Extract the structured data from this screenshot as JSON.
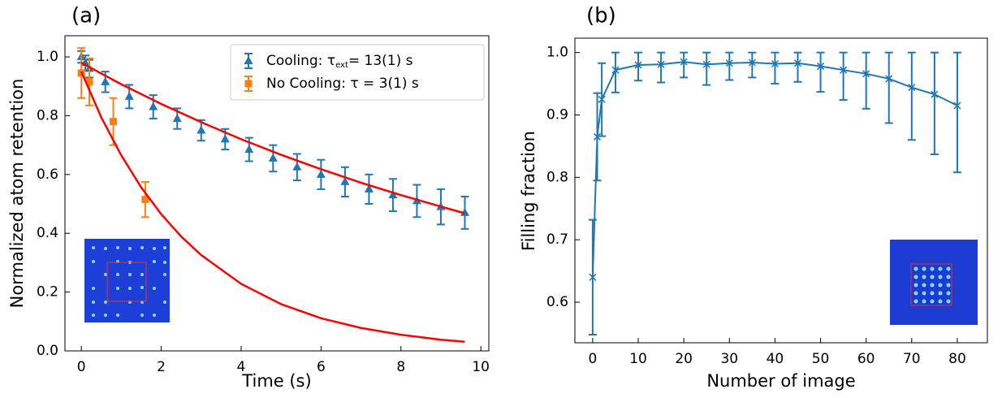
{
  "chart_data": [
    {
      "type": "line",
      "panel_label": "(a)",
      "xlabel": "Time (s)",
      "ylabel": "Normalized atom retention",
      "xlim": [
        -0.41,
        10.2
      ],
      "ylim": [
        0,
        1.072
      ],
      "xticks": [
        0,
        2,
        4,
        6,
        8,
        10
      ],
      "yticks": [
        {
          "value": 0,
          "label": "0.0"
        },
        0.2,
        0.4,
        0.6,
        0.8,
        {
          "value": 1,
          "label": "1.0"
        }
      ],
      "legend": "upper right",
      "series": [
        {
          "name": "Cooling: τ",
          "name_sub": "ext",
          "name_after": "= 13(1) s",
          "color": "#1f77b4",
          "marker": "^",
          "linestyle": "none",
          "x": [
            0,
            0.1,
            0.2,
            0.6,
            1.2,
            1.8,
            2.4,
            3.0,
            3.6,
            4.2,
            4.8,
            5.4,
            6.0,
            6.6,
            7.2,
            7.8,
            8.4,
            9.0,
            9.6
          ],
          "values": [
            1.0,
            0.98,
            0.96,
            0.915,
            0.865,
            0.83,
            0.79,
            0.75,
            0.72,
            0.685,
            0.655,
            0.625,
            0.6,
            0.575,
            0.55,
            0.53,
            0.51,
            0.49,
            0.47
          ],
          "errors": [
            0.02,
            0.025,
            0.03,
            0.035,
            0.04,
            0.04,
            0.035,
            0.035,
            0.035,
            0.04,
            0.045,
            0.045,
            0.05,
            0.05,
            0.05,
            0.055,
            0.055,
            0.06,
            0.055
          ]
        },
        {
          "name": "No Cooling: τ = 3(1) s",
          "color": "#ff7f0e",
          "marker": "s",
          "linestyle": "none",
          "x": [
            0,
            0.2,
            0.8,
            1.6
          ],
          "values": [
            0.945,
            0.915,
            0.78,
            0.515
          ],
          "errors": [
            0.085,
            0.08,
            0.08,
            0.06
          ]
        },
        {
          "color": "#ff0000",
          "x": [
            0,
            1,
            2,
            3,
            4,
            5,
            6,
            7,
            8,
            9,
            9.6
          ],
          "values": [
            0.98,
            0.907,
            0.84,
            0.778,
            0.72,
            0.667,
            0.618,
            0.572,
            0.53,
            0.491,
            0.468
          ]
        },
        {
          "color": "#ff0000",
          "x": [
            0,
            0.5,
            1,
            1.5,
            2,
            2.5,
            3,
            4,
            5,
            6,
            7,
            8,
            9,
            9.6
          ],
          "values": [
            0.95,
            0.794,
            0.665,
            0.556,
            0.465,
            0.389,
            0.326,
            0.228,
            0.159,
            0.111,
            0.078,
            0.055,
            0.038,
            0.031
          ]
        }
      ]
    },
    {
      "type": "line",
      "panel_label": "(b)",
      "xlabel": "Number of image",
      "ylabel": "Filling fraction",
      "xlim": [
        -3.9,
        86.6
      ],
      "ylim": [
        0.535,
        1.023
      ],
      "xticks": [
        0,
        10,
        20,
        30,
        40,
        50,
        60,
        70,
        80
      ],
      "yticks": [
        0.6,
        0.7,
        0.8,
        0.9,
        {
          "value": 1,
          "label": "1.0"
        }
      ],
      "series": [
        {
          "color": "#1f77b4",
          "marker": "x",
          "x": [
            0,
            1,
            2,
            5,
            10,
            15,
            20,
            25,
            30,
            35,
            40,
            45,
            50,
            55,
            60,
            65,
            70,
            75,
            80
          ],
          "values": [
            0.64,
            0.865,
            0.925,
            0.972,
            0.98,
            0.981,
            0.985,
            0.981,
            0.983,
            0.984,
            0.982,
            0.983,
            0.978,
            0.972,
            0.966,
            0.958,
            0.944,
            0.933,
            0.915
          ],
          "errors_lower": [
            0.092,
            0.07,
            0.059,
            0.036,
            0.025,
            0.029,
            0.025,
            0.033,
            0.027,
            0.024,
            0.032,
            0.03,
            0.041,
            0.048,
            0.056,
            0.071,
            0.084,
            0.096,
            0.107
          ],
          "errors_upper": [
            0.092,
            0.07,
            0.058,
            0.028,
            0.02,
            0.019,
            0.015,
            0.019,
            0.017,
            0.016,
            0.018,
            0.017,
            0.022,
            0.028,
            0.034,
            0.042,
            0.056,
            0.067,
            0.085
          ]
        }
      ]
    }
  ]
}
